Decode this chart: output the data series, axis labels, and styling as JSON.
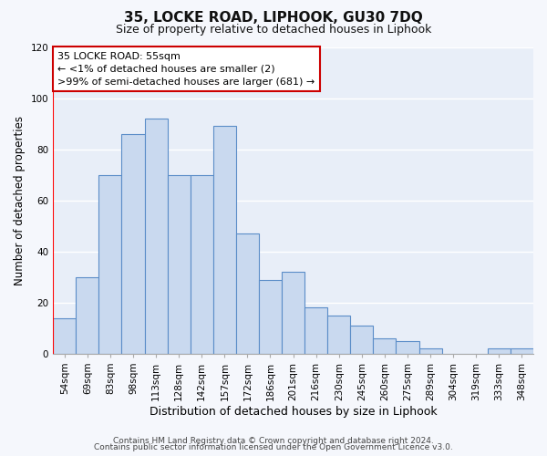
{
  "title": "35, LOCKE ROAD, LIPHOOK, GU30 7DQ",
  "subtitle": "Size of property relative to detached houses in Liphook",
  "xlabel": "Distribution of detached houses by size in Liphook",
  "ylabel": "Number of detached properties",
  "bar_labels": [
    "54sqm",
    "69sqm",
    "83sqm",
    "98sqm",
    "113sqm",
    "128sqm",
    "142sqm",
    "157sqm",
    "172sqm",
    "186sqm",
    "201sqm",
    "216sqm",
    "230sqm",
    "245sqm",
    "260sqm",
    "275sqm",
    "289sqm",
    "304sqm",
    "319sqm",
    "333sqm",
    "348sqm"
  ],
  "bar_values": [
    14,
    30,
    70,
    86,
    92,
    70,
    70,
    89,
    47,
    29,
    32,
    18,
    15,
    11,
    6,
    5,
    2,
    0,
    0,
    2,
    2
  ],
  "bar_color": "#c9d9ef",
  "bar_edge_color": "#5b8dc8",
  "ylim": [
    0,
    120
  ],
  "yticks": [
    0,
    20,
    40,
    60,
    80,
    100,
    120
  ],
  "annotation_title": "35 LOCKE ROAD: 55sqm",
  "annotation_line1": "← <1% of detached houses are smaller (2)",
  "annotation_line2": ">99% of semi-detached houses are larger (681) →",
  "annotation_box_facecolor": "#ffffff",
  "annotation_box_edgecolor": "#cc0000",
  "footer1": "Contains HM Land Registry data © Crown copyright and database right 2024.",
  "footer2": "Contains public sector information licensed under the Open Government Licence v3.0.",
  "bg_color": "#f5f7fc",
  "plot_bg_color": "#e8eef8",
  "grid_color": "#ffffff",
  "title_fontsize": 11,
  "subtitle_fontsize": 9,
  "ylabel_fontsize": 8.5,
  "xlabel_fontsize": 9,
  "tick_fontsize": 7.5,
  "footer_fontsize": 6.5
}
